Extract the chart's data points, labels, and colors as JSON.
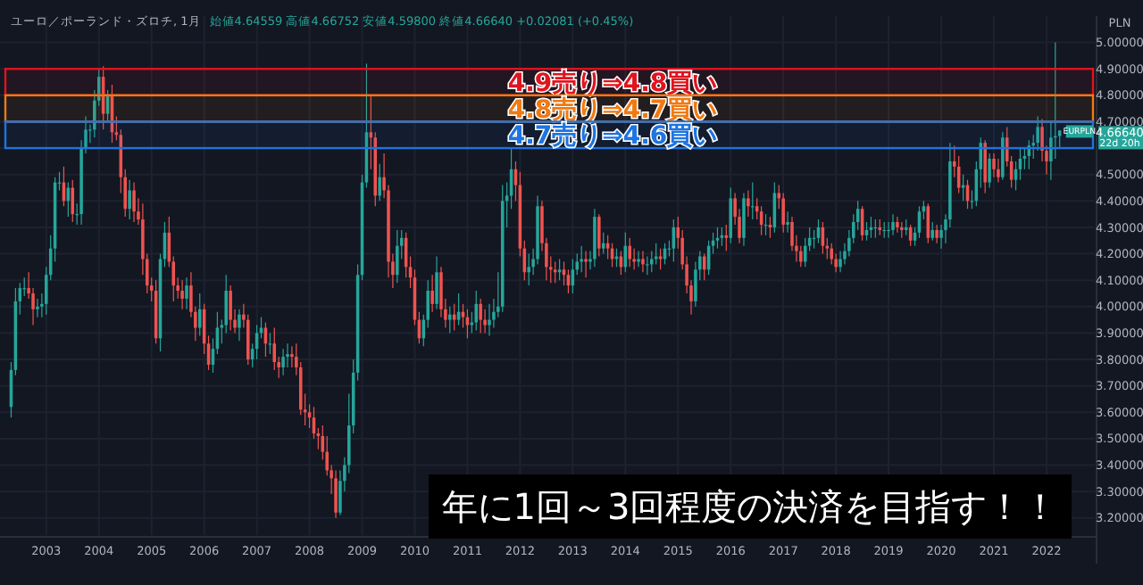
{
  "chart_data": {
    "type": "candlestick",
    "title": "ユーロ／ポーランド・ズロチ, 1月",
    "subtitle": "始値4.64559 高値4.66752 安値4.59800 終値4.66640 +0.02081 (+0.45%)",
    "ylabel": "PLN",
    "x": [
      "2002-05",
      "2002-06",
      "2002-07",
      "2002-08",
      "2002-09",
      "2002-10",
      "2002-11",
      "2002-12",
      "2003-01",
      "2003-02",
      "2003-03",
      "2003-04",
      "2003-05",
      "2003-06",
      "2003-07",
      "2003-08",
      "2003-09",
      "2003-10",
      "2003-11",
      "2003-12",
      "2004-01",
      "2004-02",
      "2004-03",
      "2004-04",
      "2004-05",
      "2004-06",
      "2004-07",
      "2004-08",
      "2004-09",
      "2004-10",
      "2004-11",
      "2004-12",
      "2005-01",
      "2005-02",
      "2005-03",
      "2005-04",
      "2005-05",
      "2005-06",
      "2005-07",
      "2005-08",
      "2005-09",
      "2005-10",
      "2005-11",
      "2005-12",
      "2006-01",
      "2006-02",
      "2006-03",
      "2006-04",
      "2006-05",
      "2006-06",
      "2006-07",
      "2006-08",
      "2006-09",
      "2006-10",
      "2006-11",
      "2006-12",
      "2007-01",
      "2007-02",
      "2007-03",
      "2007-04",
      "2007-05",
      "2007-06",
      "2007-07",
      "2007-08",
      "2007-09",
      "2007-10",
      "2007-11",
      "2007-12",
      "2008-01",
      "2008-02",
      "2008-03",
      "2008-04",
      "2008-05",
      "2008-06",
      "2008-07",
      "2008-08",
      "2008-09",
      "2008-10",
      "2008-11",
      "2008-12",
      "2009-01",
      "2009-02",
      "2009-03",
      "2009-04",
      "2009-05",
      "2009-06",
      "2009-07",
      "2009-08",
      "2009-09",
      "2009-10",
      "2009-11",
      "2009-12",
      "2010-01",
      "2010-02",
      "2010-03",
      "2010-04",
      "2010-05",
      "2010-06",
      "2010-07",
      "2010-08",
      "2010-09",
      "2010-10",
      "2010-11",
      "2010-12",
      "2011-01",
      "2011-02",
      "2011-03",
      "2011-04",
      "2011-05",
      "2011-06",
      "2011-07",
      "2011-08",
      "2011-09",
      "2011-10",
      "2011-11",
      "2011-12",
      "2012-01",
      "2012-02",
      "2012-03",
      "2012-04",
      "2012-05",
      "2012-06",
      "2012-07",
      "2012-08",
      "2012-09",
      "2012-10",
      "2012-11",
      "2012-12",
      "2013-01",
      "2013-02",
      "2013-03",
      "2013-04",
      "2013-05",
      "2013-06",
      "2013-07",
      "2013-08",
      "2013-09",
      "2013-10",
      "2013-11",
      "2013-12",
      "2014-01",
      "2014-02",
      "2014-03",
      "2014-04",
      "2014-05",
      "2014-06",
      "2014-07",
      "2014-08",
      "2014-09",
      "2014-10",
      "2014-11",
      "2014-12",
      "2015-01",
      "2015-02",
      "2015-03",
      "2015-04",
      "2015-05",
      "2015-06",
      "2015-07",
      "2015-08",
      "2015-09",
      "2015-10",
      "2015-11",
      "2015-12",
      "2016-01",
      "2016-02",
      "2016-03",
      "2016-04",
      "2016-05",
      "2016-06",
      "2016-07",
      "2016-08",
      "2016-09",
      "2016-10",
      "2016-11",
      "2016-12",
      "2017-01",
      "2017-02",
      "2017-03",
      "2017-04",
      "2017-05",
      "2017-06",
      "2017-07",
      "2017-08",
      "2017-09",
      "2017-10",
      "2017-11",
      "2017-12",
      "2018-01",
      "2018-02",
      "2018-03",
      "2018-04",
      "2018-05",
      "2018-06",
      "2018-07",
      "2018-08",
      "2018-09",
      "2018-10",
      "2018-11",
      "2018-12",
      "2019-01",
      "2019-02",
      "2019-03",
      "2019-04",
      "2019-05",
      "2019-06",
      "2019-07",
      "2019-08",
      "2019-09",
      "2019-10",
      "2019-11",
      "2019-12",
      "2020-01",
      "2020-02",
      "2020-03",
      "2020-04",
      "2020-05",
      "2020-06",
      "2020-07",
      "2020-08",
      "2020-09",
      "2020-10",
      "2020-11",
      "2020-12",
      "2021-01",
      "2021-02",
      "2021-03",
      "2021-04",
      "2021-05",
      "2021-06",
      "2021-07",
      "2021-08",
      "2021-09",
      "2021-10",
      "2021-11",
      "2021-12",
      "2022-01",
      "2022-02",
      "2022-03",
      "2022-04"
    ],
    "ohlc": [
      [
        3.62,
        3.79,
        3.58,
        3.76
      ],
      [
        3.76,
        4.07,
        3.74,
        4.02
      ],
      [
        4.02,
        4.09,
        3.97,
        4.07
      ],
      [
        4.07,
        4.11,
        4.04,
        4.07
      ],
      [
        4.07,
        4.13,
        4.03,
        4.05
      ],
      [
        4.05,
        4.07,
        3.93,
        3.99
      ],
      [
        3.99,
        4.03,
        3.96,
        4.0
      ],
      [
        4.0,
        4.05,
        3.96,
        4.01
      ],
      [
        4.01,
        4.15,
        3.97,
        4.12
      ],
      [
        4.12,
        4.27,
        4.1,
        4.22
      ],
      [
        4.22,
        4.49,
        4.17,
        4.47
      ],
      [
        4.47,
        4.51,
        4.44,
        4.47
      ],
      [
        4.47,
        4.53,
        4.38,
        4.4
      ],
      [
        4.4,
        4.47,
        4.34,
        4.45
      ],
      [
        4.45,
        4.48,
        4.32,
        4.35
      ],
      [
        4.35,
        4.39,
        4.31,
        4.35
      ],
      [
        4.35,
        4.63,
        4.31,
        4.6
      ],
      [
        4.6,
        4.72,
        4.58,
        4.67
      ],
      [
        4.67,
        4.69,
        4.62,
        4.67
      ],
      [
        4.67,
        4.82,
        4.64,
        4.78
      ],
      [
        4.78,
        4.9,
        4.76,
        4.87
      ],
      [
        4.87,
        4.91,
        4.67,
        4.73
      ],
      [
        4.73,
        4.82,
        4.7,
        4.8
      ],
      [
        4.8,
        4.84,
        4.62,
        4.66
      ],
      [
        4.66,
        4.72,
        4.63,
        4.65
      ],
      [
        4.65,
        4.67,
        4.43,
        4.49
      ],
      [
        4.49,
        4.52,
        4.34,
        4.37
      ],
      [
        4.37,
        4.48,
        4.33,
        4.44
      ],
      [
        4.44,
        4.47,
        4.32,
        4.36
      ],
      [
        4.36,
        4.41,
        4.31,
        4.33
      ],
      [
        4.33,
        4.39,
        4.12,
        4.18
      ],
      [
        4.18,
        4.2,
        4.05,
        4.08
      ],
      [
        4.08,
        4.11,
        4.02,
        4.06
      ],
      [
        4.06,
        4.1,
        3.86,
        3.88
      ],
      [
        3.88,
        4.2,
        3.83,
        4.18
      ],
      [
        4.18,
        4.32,
        4.15,
        4.28
      ],
      [
        4.28,
        4.34,
        4.15,
        4.17
      ],
      [
        4.17,
        4.19,
        4.02,
        4.08
      ],
      [
        4.08,
        4.11,
        4.03,
        4.06
      ],
      [
        4.06,
        4.1,
        3.99,
        4.03
      ],
      [
        4.03,
        4.11,
        3.99,
        4.08
      ],
      [
        4.08,
        4.13,
        3.96,
        3.98
      ],
      [
        3.98,
        4.0,
        3.87,
        3.92
      ],
      [
        3.92,
        4.05,
        3.89,
        3.99
      ],
      [
        3.99,
        4.01,
        3.82,
        3.86
      ],
      [
        3.86,
        3.89,
        3.76,
        3.78
      ],
      [
        3.78,
        3.88,
        3.75,
        3.84
      ],
      [
        3.84,
        3.98,
        3.82,
        3.92
      ],
      [
        3.92,
        3.95,
        3.86,
        3.93
      ],
      [
        3.93,
        4.12,
        3.9,
        4.06
      ],
      [
        4.06,
        4.08,
        3.91,
        3.95
      ],
      [
        3.95,
        3.99,
        3.9,
        3.92
      ],
      [
        3.92,
        3.99,
        3.87,
        3.97
      ],
      [
        3.97,
        4.01,
        3.92,
        3.95
      ],
      [
        3.95,
        3.97,
        3.78,
        3.8
      ],
      [
        3.8,
        3.86,
        3.77,
        3.84
      ],
      [
        3.84,
        3.93,
        3.8,
        3.9
      ],
      [
        3.9,
        3.96,
        3.88,
        3.92
      ],
      [
        3.92,
        3.94,
        3.81,
        3.86
      ],
      [
        3.86,
        3.9,
        3.82,
        3.86
      ],
      [
        3.86,
        3.92,
        3.76,
        3.79
      ],
      [
        3.79,
        3.81,
        3.73,
        3.77
      ],
      [
        3.77,
        3.84,
        3.74,
        3.81
      ],
      [
        3.81,
        3.86,
        3.77,
        3.82
      ],
      [
        3.82,
        3.85,
        3.77,
        3.81
      ],
      [
        3.81,
        3.86,
        3.74,
        3.77
      ],
      [
        3.77,
        3.79,
        3.59,
        3.61
      ],
      [
        3.61,
        3.67,
        3.55,
        3.6
      ],
      [
        3.6,
        3.63,
        3.54,
        3.58
      ],
      [
        3.58,
        3.62,
        3.5,
        3.52
      ],
      [
        3.52,
        3.54,
        3.46,
        3.51
      ],
      [
        3.51,
        3.55,
        3.42,
        3.45
      ],
      [
        3.45,
        3.51,
        3.36,
        3.38
      ],
      [
        3.38,
        3.4,
        3.29,
        3.35
      ],
      [
        3.35,
        3.38,
        3.2,
        3.22
      ],
      [
        3.22,
        3.38,
        3.21,
        3.34
      ],
      [
        3.34,
        3.43,
        3.3,
        3.4
      ],
      [
        3.4,
        3.67,
        3.37,
        3.55
      ],
      [
        3.55,
        3.8,
        3.52,
        3.75
      ],
      [
        3.75,
        4.16,
        3.72,
        4.12
      ],
      [
        4.12,
        4.5,
        4.1,
        4.47
      ],
      [
        4.47,
        4.92,
        4.45,
        4.66
      ],
      [
        4.66,
        4.8,
        4.52,
        4.64
      ],
      [
        4.64,
        4.66,
        4.38,
        4.42
      ],
      [
        4.42,
        4.54,
        4.4,
        4.49
      ],
      [
        4.49,
        4.58,
        4.41,
        4.44
      ],
      [
        4.44,
        4.46,
        4.11,
        4.17
      ],
      [
        4.17,
        4.2,
        4.07,
        4.12
      ],
      [
        4.12,
        4.29,
        4.09,
        4.23
      ],
      [
        4.23,
        4.29,
        4.18,
        4.26
      ],
      [
        4.26,
        4.28,
        4.11,
        4.15
      ],
      [
        4.15,
        4.19,
        4.07,
        4.11
      ],
      [
        4.11,
        4.14,
        3.93,
        3.95
      ],
      [
        3.95,
        3.98,
        3.86,
        3.88
      ],
      [
        3.88,
        3.97,
        3.85,
        3.95
      ],
      [
        3.95,
        4.1,
        3.92,
        4.06
      ],
      [
        4.06,
        4.12,
        3.98,
        4.01
      ],
      [
        4.01,
        4.19,
        3.99,
        4.13
      ],
      [
        4.13,
        4.15,
        3.96,
        3.99
      ],
      [
        3.99,
        4.03,
        3.92,
        3.95
      ],
      [
        3.95,
        4.0,
        3.9,
        3.97
      ],
      [
        3.97,
        4.01,
        3.91,
        3.95
      ],
      [
        3.95,
        4.05,
        3.93,
        3.98
      ],
      [
        3.98,
        4.01,
        3.92,
        3.96
      ],
      [
        3.96,
        3.99,
        3.88,
        3.93
      ],
      [
        3.93,
        3.98,
        3.9,
        3.94
      ],
      [
        3.94,
        4.06,
        3.91,
        4.01
      ],
      [
        4.01,
        4.03,
        3.9,
        3.95
      ],
      [
        3.95,
        3.99,
        3.9,
        3.93
      ],
      [
        3.93,
        4.01,
        3.89,
        3.95
      ],
      [
        3.95,
        4.03,
        3.92,
        3.98
      ],
      [
        3.98,
        4.13,
        3.96,
        4.0
      ],
      [
        4.0,
        4.46,
        3.98,
        4.4
      ],
      [
        4.4,
        4.47,
        4.3,
        4.42
      ],
      [
        4.42,
        4.6,
        4.37,
        4.52
      ],
      [
        4.52,
        4.55,
        4.4,
        4.46
      ],
      [
        4.46,
        4.51,
        4.19,
        4.22
      ],
      [
        4.22,
        4.25,
        4.1,
        4.13
      ],
      [
        4.13,
        4.2,
        4.08,
        4.15
      ],
      [
        4.15,
        4.22,
        4.12,
        4.18
      ],
      [
        4.18,
        4.42,
        4.16,
        4.38
      ],
      [
        4.38,
        4.4,
        4.21,
        4.24
      ],
      [
        4.24,
        4.26,
        4.1,
        4.15
      ],
      [
        4.15,
        4.19,
        4.09,
        4.14
      ],
      [
        4.14,
        4.17,
        4.09,
        4.13
      ],
      [
        4.13,
        4.18,
        4.1,
        4.14
      ],
      [
        4.14,
        4.17,
        4.08,
        4.12
      ],
      [
        4.12,
        4.14,
        4.05,
        4.08
      ],
      [
        4.08,
        4.18,
        4.05,
        4.14
      ],
      [
        4.14,
        4.2,
        4.12,
        4.17
      ],
      [
        4.17,
        4.23,
        4.13,
        4.18
      ],
      [
        4.18,
        4.21,
        4.11,
        4.17
      ],
      [
        4.17,
        4.21,
        4.14,
        4.18
      ],
      [
        4.18,
        4.37,
        4.15,
        4.34
      ],
      [
        4.34,
        4.35,
        4.19,
        4.22
      ],
      [
        4.22,
        4.28,
        4.2,
        4.24
      ],
      [
        4.24,
        4.27,
        4.18,
        4.22
      ],
      [
        4.22,
        4.24,
        4.15,
        4.18
      ],
      [
        4.18,
        4.22,
        4.15,
        4.19
      ],
      [
        4.19,
        4.21,
        4.12,
        4.15
      ],
      [
        4.15,
        4.28,
        4.13,
        4.23
      ],
      [
        4.23,
        4.26,
        4.15,
        4.18
      ],
      [
        4.18,
        4.22,
        4.14,
        4.17
      ],
      [
        4.17,
        4.21,
        4.15,
        4.18
      ],
      [
        4.18,
        4.21,
        4.13,
        4.16
      ],
      [
        4.16,
        4.19,
        4.12,
        4.16
      ],
      [
        4.16,
        4.21,
        4.13,
        4.18
      ],
      [
        4.18,
        4.24,
        4.16,
        4.19
      ],
      [
        4.19,
        4.22,
        4.14,
        4.18
      ],
      [
        4.18,
        4.24,
        4.16,
        4.22
      ],
      [
        4.22,
        4.25,
        4.19,
        4.22
      ],
      [
        4.22,
        4.33,
        4.17,
        4.3
      ],
      [
        4.3,
        4.34,
        4.22,
        4.26
      ],
      [
        4.26,
        4.29,
        4.14,
        4.16
      ],
      [
        4.16,
        4.19,
        4.05,
        4.08
      ],
      [
        4.08,
        4.1,
        3.97,
        4.02
      ],
      [
        4.02,
        4.17,
        4.0,
        4.14
      ],
      [
        4.14,
        4.21,
        4.1,
        4.19
      ],
      [
        4.19,
        4.2,
        4.1,
        4.14
      ],
      [
        4.14,
        4.25,
        4.12,
        4.23
      ],
      [
        4.23,
        4.28,
        4.2,
        4.25
      ],
      [
        4.25,
        4.3,
        4.22,
        4.26
      ],
      [
        4.26,
        4.3,
        4.23,
        4.27
      ],
      [
        4.27,
        4.31,
        4.21,
        4.26
      ],
      [
        4.26,
        4.45,
        4.24,
        4.41
      ],
      [
        4.41,
        4.43,
        4.31,
        4.34
      ],
      [
        4.34,
        4.37,
        4.24,
        4.26
      ],
      [
        4.26,
        4.43,
        4.23,
        4.41
      ],
      [
        4.41,
        4.44,
        4.34,
        4.38
      ],
      [
        4.38,
        4.47,
        4.33,
        4.38
      ],
      [
        4.38,
        4.41,
        4.33,
        4.36
      ],
      [
        4.36,
        4.38,
        4.27,
        4.31
      ],
      [
        4.31,
        4.35,
        4.27,
        4.31
      ],
      [
        4.31,
        4.34,
        4.26,
        4.3
      ],
      [
        4.3,
        4.47,
        4.28,
        4.43
      ],
      [
        4.43,
        4.46,
        4.37,
        4.41
      ],
      [
        4.41,
        4.43,
        4.28,
        4.31
      ],
      [
        4.31,
        4.36,
        4.28,
        4.32
      ],
      [
        4.32,
        4.34,
        4.21,
        4.23
      ],
      [
        4.23,
        4.27,
        4.17,
        4.21
      ],
      [
        4.21,
        4.23,
        4.15,
        4.17
      ],
      [
        4.17,
        4.26,
        4.15,
        4.23
      ],
      [
        4.23,
        4.3,
        4.21,
        4.26
      ],
      [
        4.26,
        4.29,
        4.22,
        4.26
      ],
      [
        4.26,
        4.33,
        4.24,
        4.3
      ],
      [
        4.3,
        4.32,
        4.2,
        4.23
      ],
      [
        4.23,
        4.26,
        4.18,
        4.22
      ],
      [
        4.22,
        4.24,
        4.16,
        4.18
      ],
      [
        4.18,
        4.2,
        4.13,
        4.15
      ],
      [
        4.15,
        4.21,
        4.13,
        4.18
      ],
      [
        4.18,
        4.24,
        4.16,
        4.21
      ],
      [
        4.21,
        4.29,
        4.19,
        4.26
      ],
      [
        4.26,
        4.35,
        4.24,
        4.32
      ],
      [
        4.32,
        4.4,
        4.29,
        4.37
      ],
      [
        4.37,
        4.38,
        4.25,
        4.27
      ],
      [
        4.27,
        4.32,
        4.25,
        4.29
      ],
      [
        4.29,
        4.34,
        4.26,
        4.3
      ],
      [
        4.3,
        4.33,
        4.26,
        4.3
      ],
      [
        4.3,
        4.33,
        4.27,
        4.29
      ],
      [
        4.29,
        4.32,
        4.26,
        4.29
      ],
      [
        4.29,
        4.32,
        4.26,
        4.29
      ],
      [
        4.29,
        4.35,
        4.27,
        4.32
      ],
      [
        4.32,
        4.34,
        4.28,
        4.3
      ],
      [
        4.3,
        4.32,
        4.26,
        4.29
      ],
      [
        4.29,
        4.33,
        4.27,
        4.3
      ],
      [
        4.3,
        4.31,
        4.23,
        4.25
      ],
      [
        4.25,
        4.3,
        4.23,
        4.28
      ],
      [
        4.28,
        4.38,
        4.26,
        4.36
      ],
      [
        4.36,
        4.4,
        4.33,
        4.38
      ],
      [
        4.38,
        4.39,
        4.24,
        4.26
      ],
      [
        4.26,
        4.32,
        4.25,
        4.29
      ],
      [
        4.29,
        4.31,
        4.24,
        4.26
      ],
      [
        4.26,
        4.31,
        4.22,
        4.29
      ],
      [
        4.29,
        4.35,
        4.24,
        4.33
      ],
      [
        4.33,
        4.62,
        4.3,
        4.55
      ],
      [
        4.55,
        4.61,
        4.49,
        4.53
      ],
      [
        4.53,
        4.57,
        4.43,
        4.45
      ],
      [
        4.45,
        4.5,
        4.4,
        4.46
      ],
      [
        4.46,
        4.48,
        4.37,
        4.4
      ],
      [
        4.4,
        4.44,
        4.37,
        4.4
      ],
      [
        4.4,
        4.55,
        4.38,
        4.52
      ],
      [
        4.52,
        4.64,
        4.45,
        4.62
      ],
      [
        4.62,
        4.63,
        4.43,
        4.47
      ],
      [
        4.47,
        4.58,
        4.45,
        4.56
      ],
      [
        4.56,
        4.58,
        4.49,
        4.52
      ],
      [
        4.52,
        4.56,
        4.47,
        4.49
      ],
      [
        4.49,
        4.66,
        4.48,
        4.64
      ],
      [
        4.64,
        4.68,
        4.53,
        4.55
      ],
      [
        4.55,
        4.57,
        4.45,
        4.48
      ],
      [
        4.48,
        4.55,
        4.44,
        4.52
      ],
      [
        4.52,
        4.6,
        4.48,
        4.56
      ],
      [
        4.56,
        4.6,
        4.52,
        4.57
      ],
      [
        4.57,
        4.63,
        4.52,
        4.61
      ],
      [
        4.61,
        4.65,
        4.56,
        4.62
      ],
      [
        4.62,
        4.72,
        4.59,
        4.68
      ],
      [
        4.68,
        4.71,
        4.55,
        4.59
      ],
      [
        4.59,
        4.61,
        4.5,
        4.55
      ],
      [
        4.55,
        4.7,
        4.48,
        4.64
      ],
      [
        4.64,
        5.0,
        4.56,
        4.64559
      ],
      [
        4.64559,
        4.66752,
        4.598,
        4.6664
      ]
    ],
    "xlim": [
      "2002-02-15",
      "2022-12-01"
    ],
    "ylim": [
      3.135,
      5.1
    ],
    "xticks": [
      "2003",
      "2004",
      "2005",
      "2006",
      "2007",
      "2008",
      "2009",
      "2010",
      "2011",
      "2012",
      "2013",
      "2014",
      "2015",
      "2016",
      "2017",
      "2018",
      "2019",
      "2020",
      "2021",
      "2022"
    ],
    "yticks": [
      {
        "value": 3.2,
        "label": "3.20000"
      },
      {
        "value": 3.3,
        "label": "3.30000"
      },
      {
        "value": 3.4,
        "label": "3.40000"
      },
      {
        "value": 3.5,
        "label": "3.50000"
      },
      {
        "value": 3.6,
        "label": "3.60000"
      },
      {
        "value": 3.7,
        "label": "3.70000"
      },
      {
        "value": 3.8,
        "label": "3.80000"
      },
      {
        "value": 3.9,
        "label": "3.90000"
      },
      {
        "value": 4.0,
        "label": "4.00000"
      },
      {
        "value": 4.1,
        "label": "4.10000"
      },
      {
        "value": 4.2,
        "label": "4.20000"
      },
      {
        "value": 4.3,
        "label": "4.30000"
      },
      {
        "value": 4.4,
        "label": "4.40000"
      },
      {
        "value": 4.5,
        "label": "4.50000"
      },
      {
        "value": 4.6,
        "label": null
      },
      {
        "value": 4.7,
        "label": "4.70000"
      },
      {
        "value": 4.8,
        "label": "4.80000"
      },
      {
        "value": 4.9,
        "label": "4.90000"
      },
      {
        "value": 5.0,
        "label": "5.00000"
      }
    ],
    "grid": true,
    "bands": [
      {
        "axis": "y",
        "from": 4.8,
        "to": 4.9,
        "label": "4.9売り⇒4.8買い",
        "color": "#e0141e"
      },
      {
        "axis": "y",
        "from": 4.7,
        "to": 4.8,
        "label": "4.8売り⇒4.7買い",
        "color": "#f07a12"
      },
      {
        "axis": "y",
        "from": 4.6,
        "to": 4.7,
        "label": "4.7売り⇒4.6買い",
        "color": "#1e74e0"
      }
    ],
    "annotations": [
      "年に1回～3回程度の決済を目指す！！",
      "4.66640",
      "EURPLN",
      "22d 20h"
    ]
  }
}
